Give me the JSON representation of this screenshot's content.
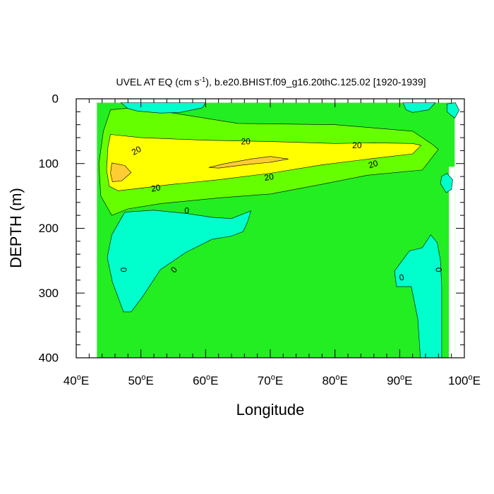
{
  "chart_data": {
    "type": "contour",
    "title_prefix": "UVEL AT EQ (cm s",
    "title_sup": "-1",
    "title_suffix": "), b.e20.BHIST.f09_g16.20thC.125.02 [1920-1939]",
    "xlabel": "Longitude",
    "ylabel": "DEPTH (m)",
    "xlim": [
      40,
      100
    ],
    "ylim": [
      400,
      0
    ],
    "x_ticks": [
      {
        "value": 40,
        "label": "40",
        "sup": "o",
        "suffix": "E"
      },
      {
        "value": 50,
        "label": "50",
        "sup": "o",
        "suffix": "E"
      },
      {
        "value": 60,
        "label": "60",
        "sup": "o",
        "suffix": "E"
      },
      {
        "value": 70,
        "label": "70",
        "sup": "o",
        "suffix": "E"
      },
      {
        "value": 80,
        "label": "80",
        "sup": "o",
        "suffix": "E"
      },
      {
        "value": 90,
        "label": "90",
        "sup": "o",
        "suffix": "E"
      },
      {
        "value": 100,
        "label": "100",
        "sup": "o",
        "suffix": "E"
      }
    ],
    "y_ticks": [
      {
        "value": 0,
        "label": "0"
      },
      {
        "value": 100,
        "label": "100"
      },
      {
        "value": 200,
        "label": "200"
      },
      {
        "value": 300,
        "label": "300"
      },
      {
        "value": 400,
        "label": "400"
      }
    ],
    "fill_colors": {
      "below_0": "#00ffcc",
      "0_to_10": "#22ee22",
      "10_to_20": "#66ff00",
      "20_to_30": "#ffff00",
      "30_to_40": "#ffcc33"
    },
    "data_extent": {
      "lon": [
        43.2,
        98.5
      ],
      "depth": [
        6,
        400
      ]
    },
    "regions": [
      {
        "level": "10_to_20",
        "points": [
          [
            45.3,
            17
          ],
          [
            48.5,
            14
          ],
          [
            55,
            22
          ],
          [
            65,
            38
          ],
          [
            80,
            40
          ],
          [
            92,
            50
          ],
          [
            95,
            70
          ],
          [
            96,
            78
          ],
          [
            93.5,
            110
          ],
          [
            85,
            118
          ],
          [
            78,
            132
          ],
          [
            70,
            147
          ],
          [
            62,
            153
          ],
          [
            53,
            162
          ],
          [
            48,
            170
          ],
          [
            45.5,
            180
          ],
          [
            43.8,
            150
          ],
          [
            43.5,
            100
          ],
          [
            44.2,
            50
          ]
        ]
      },
      {
        "level": "20_to_30",
        "points": [
          [
            45.3,
            55
          ],
          [
            50,
            60
          ],
          [
            60,
            64
          ],
          [
            70,
            66
          ],
          [
            80,
            69
          ],
          [
            86,
            68
          ],
          [
            92,
            69
          ],
          [
            93.3,
            72
          ],
          [
            92,
            85
          ],
          [
            86,
            92
          ],
          [
            78,
            102
          ],
          [
            70,
            115
          ],
          [
            62,
            125
          ],
          [
            55,
            132
          ],
          [
            50,
            138
          ],
          [
            46.5,
            142
          ],
          [
            45.1,
            135
          ],
          [
            44.7,
            110
          ],
          [
            44.9,
            75
          ]
        ]
      },
      {
        "level": "30_to_40",
        "points": [
          [
            45.5,
            99
          ],
          [
            47.5,
            103
          ],
          [
            48.5,
            114
          ],
          [
            47,
            127
          ],
          [
            45.6,
            128
          ],
          [
            45.3,
            115
          ]
        ]
      },
      {
        "level": "30_to_40",
        "points": [
          [
            60.5,
            106
          ],
          [
            63,
            100
          ],
          [
            67,
            93
          ],
          [
            70,
            89
          ],
          [
            72.8,
            93
          ],
          [
            70,
            98
          ],
          [
            66,
            102
          ],
          [
            62,
            107
          ]
        ]
      },
      {
        "level": "below_0",
        "points": [
          [
            47.5,
            175
          ],
          [
            52,
            172
          ],
          [
            57,
            177
          ],
          [
            61,
            183
          ],
          [
            64,
            185
          ],
          [
            67,
            173
          ],
          [
            66.5,
            190
          ],
          [
            65.8,
            205
          ],
          [
            64,
            212
          ],
          [
            61,
            217
          ],
          [
            57,
            237
          ],
          [
            53,
            264
          ],
          [
            50.3,
            305
          ],
          [
            48.5,
            329
          ],
          [
            47.3,
            329
          ],
          [
            45.6,
            283
          ],
          [
            44.8,
            245
          ],
          [
            45.5,
            210
          ]
        ]
      },
      {
        "level": "below_0",
        "points": [
          [
            46.9,
            6
          ],
          [
            60,
            6
          ],
          [
            59.5,
            14
          ],
          [
            56,
            21
          ],
          [
            53,
            22
          ],
          [
            49.5,
            19
          ],
          [
            48,
            15
          ]
        ]
      },
      {
        "level": "below_0",
        "points": [
          [
            90.5,
            6
          ],
          [
            95.5,
            6
          ],
          [
            94.5,
            17
          ],
          [
            92,
            21
          ],
          [
            91,
            17
          ]
        ]
      },
      {
        "level": "below_0",
        "points": [
          [
            97.3,
            8
          ],
          [
            98.6,
            6
          ],
          [
            99.2,
            18
          ],
          [
            98.5,
            30
          ],
          [
            97.3,
            20
          ]
        ]
      },
      {
        "level": "below_0",
        "points": [
          [
            96.5,
            120
          ],
          [
            97.3,
            115
          ],
          [
            98.2,
            125
          ],
          [
            98,
            140
          ],
          [
            97.2,
            145
          ],
          [
            96.3,
            131
          ]
        ]
      },
      {
        "level": "below_0",
        "points": [
          [
            89.2,
            266
          ],
          [
            91.5,
            235
          ],
          [
            93.5,
            230
          ],
          [
            94.8,
            210
          ],
          [
            95.8,
            222
          ],
          [
            96.3,
            250
          ],
          [
            96.5,
            290
          ],
          [
            96.5,
            400
          ],
          [
            93.2,
            400
          ],
          [
            92.8,
            340
          ],
          [
            91.8,
            290
          ],
          [
            89.5,
            290
          ]
        ]
      }
    ],
    "contour_labels": [
      {
        "x": 49.3,
        "y": 80,
        "text": "20",
        "angle": -28
      },
      {
        "x": 66.2,
        "y": 66,
        "text": "20",
        "angle": 0
      },
      {
        "x": 83.4,
        "y": 72,
        "text": "20",
        "angle": 0
      },
      {
        "x": 85.9,
        "y": 101,
        "text": "20",
        "angle": -18
      },
      {
        "x": 69.8,
        "y": 121,
        "text": "20",
        "angle": -10
      },
      {
        "x": 52.3,
        "y": 138,
        "text": "20",
        "angle": -10
      },
      {
        "x": 57.1,
        "y": 173,
        "text": "0",
        "angle": 0
      },
      {
        "x": 47.3,
        "y": 264,
        "text": "0",
        "angle": 90
      },
      {
        "x": 55.1,
        "y": 264,
        "text": "0",
        "angle": -50
      },
      {
        "x": 90.3,
        "y": 276,
        "text": "0",
        "angle": -10
      },
      {
        "x": 96.0,
        "y": 264,
        "text": "0",
        "angle": 90
      }
    ]
  }
}
